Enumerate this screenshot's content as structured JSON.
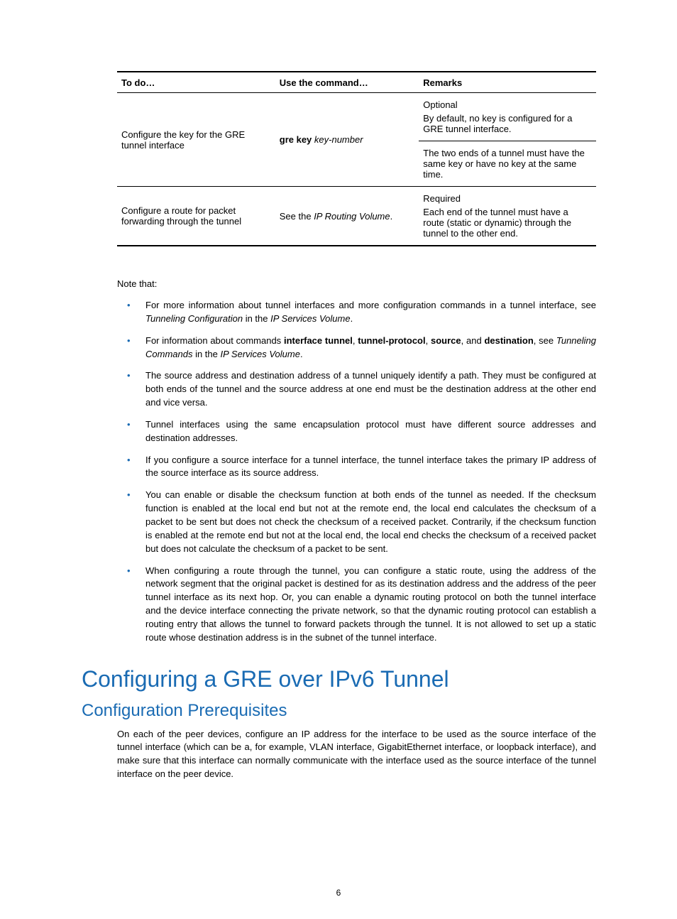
{
  "table": {
    "headers": [
      "To do…",
      "Use the command…",
      "Remarks"
    ],
    "rows": [
      {
        "todo": "Configure the key for the GRE tunnel interface",
        "cmd_bold": "gre key",
        "cmd_ital": " key-number",
        "remark_a": "Optional",
        "remark_b": "By default, no key is configured for a GRE tunnel interface.",
        "remark_c": "The two ends of a tunnel must have the same key or have no key at the same time."
      },
      {
        "todo": "Configure a route for packet forwarding through the tunnel",
        "cmd_plain_pre": "See the ",
        "cmd_ital": "IP Routing Volume",
        "cmd_plain_post": ".",
        "remark_a": "Required",
        "remark_b": "Each end of the tunnel must have a route (static or dynamic) through the tunnel to the other end."
      }
    ]
  },
  "note_that": "Note that:",
  "bullets": [
    {
      "pre": "For more information about tunnel interfaces and more configuration commands in a tunnel interface, see ",
      "i1": "Tunneling Configuration",
      "mid": " in the ",
      "i2": "IP Services Volume",
      "post": "."
    },
    {
      "pre": "For information about commands ",
      "b1": "interface tunnel",
      "c1": ", ",
      "b2": "tunnel-protocol",
      "c2": ", ",
      "b3": "source",
      "c3": ", and ",
      "b4": "destination",
      "mid2": ", see ",
      "i1": "Tunneling Commands",
      "mid": " in the ",
      "i2": "IP Services Volume",
      "post": "."
    },
    {
      "text": "The source address and destination address of a tunnel uniquely identify a path. They must be configured at both ends of the tunnel and the source address at one end must be the destination address at the other end and vice versa."
    },
    {
      "text": "Tunnel interfaces using the same encapsulation protocol must have different source addresses and destination addresses."
    },
    {
      "text": "If you configure a source interface for a tunnel interface, the tunnel interface takes the primary IP address of the source interface as its source address."
    },
    {
      "text": "You can enable or disable the checksum function at both ends of the tunnel as needed. If the checksum function is enabled at the local end but not at the remote end, the local end calculates the checksum of a packet to be sent but does not check the checksum of a received packet. Contrarily, if the checksum function is enabled at the remote end but not at the local end, the local end checks the checksum of a received packet but does not calculate the checksum of a packet to be sent."
    },
    {
      "text": "When configuring a route through the tunnel, you can configure a static route, using the address of the network segment that the original packet is destined for as its destination address and the address of the peer tunnel interface as its next hop. Or, you can enable a dynamic routing protocol on both the tunnel interface and the device interface connecting the private network, so that the dynamic routing protocol can establish a routing entry that allows the tunnel to forward packets through the tunnel. It is not allowed to set up a static route whose destination address is in the subnet of the tunnel interface."
    }
  ],
  "h1": "Configuring a GRE over IPv6 Tunnel",
  "h2": "Configuration Prerequisites",
  "prereq_para": "On each of the peer devices, configure an IP address for the interface to be used as the source interface of the tunnel interface (which can be a, for example, VLAN interface, GigabitEthernet interface, or loopback interface), and make sure that this interface can normally communicate with the interface used as the source interface of the tunnel interface on the peer device.",
  "page_number": "6",
  "colors": {
    "accent": "#1a6bb3",
    "text": "#000000",
    "background": "#ffffff"
  }
}
